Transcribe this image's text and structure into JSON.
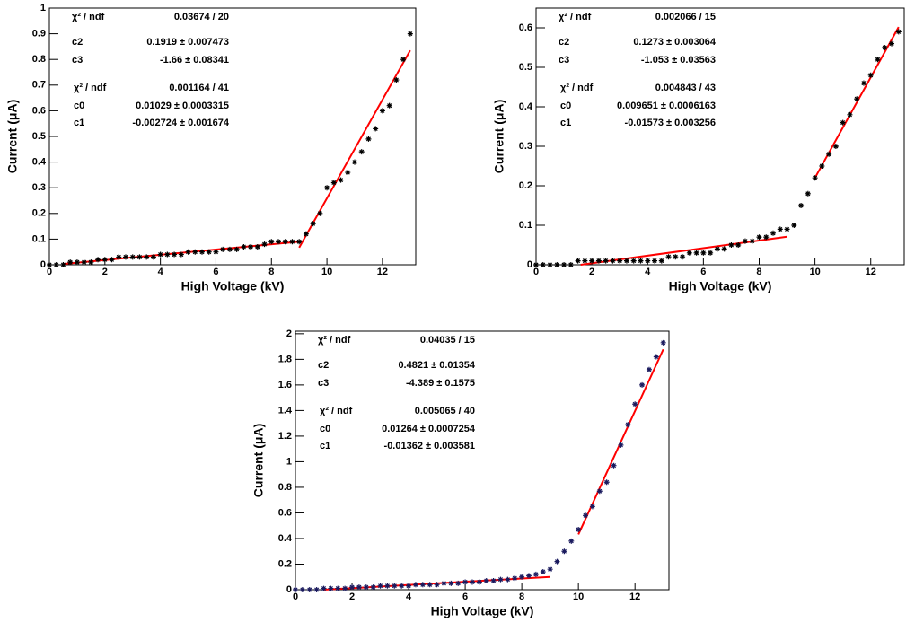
{
  "chart_data": [
    {
      "type": "scatter",
      "x_label": "High Voltage (kV)",
      "y_label": "Current (μA)",
      "xlim": [
        0,
        13.2
      ],
      "ylim": [
        0,
        1
      ],
      "xticks": [
        0,
        2,
        4,
        6,
        8,
        10,
        12
      ],
      "yticks": [
        0,
        0.1,
        0.2,
        0.3,
        0.4,
        0.5,
        0.6,
        0.7,
        0.8,
        0.9,
        1
      ],
      "x": [
        0,
        0.25,
        0.5,
        0.75,
        1,
        1.25,
        1.5,
        1.75,
        2,
        2.25,
        2.5,
        2.75,
        3,
        3.25,
        3.5,
        3.75,
        4,
        4.25,
        4.5,
        4.75,
        5,
        5.25,
        5.5,
        5.75,
        6,
        6.25,
        6.5,
        6.75,
        7,
        7.25,
        7.5,
        7.75,
        8,
        8.25,
        8.5,
        8.75,
        9,
        9.25,
        9.5,
        9.75,
        10,
        10.25,
        10.5,
        10.75,
        11,
        11.25,
        11.5,
        11.75,
        12,
        12.25,
        12.5,
        12.75,
        13
      ],
      "series": [
        {
          "color": "#000000",
          "values": [
            0,
            0,
            0,
            0.01,
            0.01,
            0.01,
            0.01,
            0.02,
            0.02,
            0.02,
            0.03,
            0.03,
            0.03,
            0.03,
            0.03,
            0.03,
            0.04,
            0.04,
            0.04,
            0.04,
            0.05,
            0.05,
            0.05,
            0.05,
            0.05,
            0.06,
            0.06,
            0.06,
            0.07,
            0.07,
            0.07,
            0.08,
            0.09,
            0.09,
            0.09,
            0.09,
            0.09,
            0.12,
            0.16,
            0.2,
            0.3,
            0.32,
            0.33,
            0.36,
            0.4,
            0.44,
            0.49,
            0.53,
            0.6,
            0.62,
            0.72,
            0.8,
            0.9
          ]
        }
      ],
      "fits": [
        {
          "color": "#ff0000",
          "x": [
            9,
            13
          ],
          "values": [
            0.067,
            0.835
          ]
        },
        {
          "color": "#ff0000",
          "x": [
            0.5,
            9
          ],
          "values": [
            0.003,
            0.09
          ]
        }
      ],
      "stats": [
        [
          {
            "label": "χ² / ndf",
            "value": "0.03674 / 20"
          },
          {
            "label": "c2",
            "value": "0.1919 ± 0.007473"
          },
          {
            "label": "c3",
            "value": "-1.66 ± 0.08341"
          }
        ],
        [
          {
            "label": "χ² / ndf",
            "value": "0.001164 / 41"
          },
          {
            "label": "c0",
            "value": "0.01029 ± 0.0003315"
          },
          {
            "label": "c1",
            "value": "-0.002724 ± 0.001674"
          }
        ]
      ]
    },
    {
      "type": "scatter",
      "x_label": "High Voltage (kV)",
      "y_label": "Current (μA)",
      "xlim": [
        0,
        13.2
      ],
      "ylim": [
        0,
        0.65
      ],
      "xticks": [
        0,
        2,
        4,
        6,
        8,
        10,
        12
      ],
      "yticks": [
        0,
        0.1,
        0.2,
        0.3,
        0.4,
        0.5,
        0.6
      ],
      "x": [
        0,
        0.25,
        0.5,
        0.75,
        1,
        1.25,
        1.5,
        1.75,
        2,
        2.25,
        2.5,
        2.75,
        3,
        3.25,
        3.5,
        3.75,
        4,
        4.25,
        4.5,
        4.75,
        5,
        5.25,
        5.5,
        5.75,
        6,
        6.25,
        6.5,
        6.75,
        7,
        7.25,
        7.5,
        7.75,
        8,
        8.25,
        8.5,
        8.75,
        9,
        9.25,
        9.5,
        9.75,
        10,
        10.25,
        10.5,
        10.75,
        11,
        11.25,
        11.5,
        11.75,
        12,
        12.25,
        12.5,
        12.75,
        13
      ],
      "series": [
        {
          "color": "#000000",
          "values": [
            0,
            0,
            0,
            0,
            0,
            0,
            0.01,
            0.01,
            0.01,
            0.01,
            0.01,
            0.01,
            0.01,
            0.01,
            0.01,
            0.01,
            0.01,
            0.01,
            0.01,
            0.02,
            0.02,
            0.02,
            0.03,
            0.03,
            0.03,
            0.03,
            0.04,
            0.04,
            0.05,
            0.05,
            0.06,
            0.06,
            0.07,
            0.07,
            0.08,
            0.09,
            0.09,
            0.1,
            0.15,
            0.18,
            0.22,
            0.25,
            0.28,
            0.3,
            0.36,
            0.38,
            0.42,
            0.46,
            0.48,
            0.52,
            0.55,
            0.56,
            0.59
          ]
        }
      ],
      "fits": [
        {
          "color": "#ff0000",
          "x": [
            10,
            13
          ],
          "values": [
            0.22,
            0.602
          ]
        },
        {
          "color": "#ff0000",
          "x": [
            1.6,
            9
          ],
          "values": [
            0,
            0.071
          ]
        }
      ],
      "stats": [
        [
          {
            "label": "χ² / ndf",
            "value": "0.002066 / 15"
          },
          {
            "label": "c2",
            "value": "0.1273 ± 0.003064"
          },
          {
            "label": "c3",
            "value": "-1.053 ± 0.03563"
          }
        ],
        [
          {
            "label": "χ² / ndf",
            "value": "0.004843 / 43"
          },
          {
            "label": "c0",
            "value": "0.009651 ± 0.0006163"
          },
          {
            "label": "c1",
            "value": "-0.01573 ± 0.003256"
          }
        ]
      ]
    },
    {
      "type": "scatter",
      "x_label": "High Voltage (kV)",
      "y_label": "Current (μA)",
      "xlim": [
        0,
        13.2
      ],
      "ylim": [
        0,
        2.02
      ],
      "xticks": [
        0,
        2,
        4,
        6,
        8,
        10,
        12
      ],
      "yticks": [
        0,
        0.2,
        0.4,
        0.6,
        0.8,
        1,
        1.2,
        1.4,
        1.6,
        1.8,
        2
      ],
      "x": [
        0,
        0.25,
        0.5,
        0.75,
        1,
        1.25,
        1.5,
        1.75,
        2,
        2.25,
        2.5,
        2.75,
        3,
        3.25,
        3.5,
        3.75,
        4,
        4.25,
        4.5,
        4.75,
        5,
        5.25,
        5.5,
        5.75,
        6,
        6.25,
        6.5,
        6.75,
        7,
        7.25,
        7.5,
        7.75,
        8,
        8.25,
        8.5,
        8.75,
        9,
        9.25,
        9.5,
        9.75,
        10,
        10.25,
        10.5,
        10.75,
        11,
        11.25,
        11.5,
        11.75,
        12,
        12.25,
        12.5,
        12.75,
        13
      ],
      "series": [
        {
          "color": "#1a1a5e",
          "values": [
            0,
            0,
            0,
            0,
            0.01,
            0.01,
            0.01,
            0.01,
            0.02,
            0.02,
            0.02,
            0.02,
            0.03,
            0.03,
            0.03,
            0.03,
            0.03,
            0.04,
            0.04,
            0.04,
            0.04,
            0.05,
            0.05,
            0.05,
            0.06,
            0.06,
            0.06,
            0.07,
            0.07,
            0.08,
            0.08,
            0.09,
            0.1,
            0.11,
            0.12,
            0.14,
            0.16,
            0.22,
            0.3,
            0.38,
            0.47,
            0.58,
            0.65,
            0.77,
            0.84,
            0.97,
            1.13,
            1.29,
            1.45,
            1.6,
            1.72,
            1.82,
            1.93
          ]
        }
      ],
      "fits": [
        {
          "color": "#ff0000",
          "x": [
            10,
            13
          ],
          "values": [
            0.432,
            1.878
          ]
        },
        {
          "color": "#ff0000",
          "x": [
            1,
            9
          ],
          "values": [
            0,
            0.1
          ]
        }
      ],
      "stats": [
        [
          {
            "label": "χ² / ndf",
            "value": "0.04035 / 15"
          },
          {
            "label": "c2",
            "value": "0.4821 ± 0.01354"
          },
          {
            "label": "c3",
            "value": "-4.389 ± 0.1575"
          }
        ],
        [
          {
            "label": "χ² / ndf",
            "value": "0.005065 / 40"
          },
          {
            "label": "c0",
            "value": "0.01264 ± 0.0007254"
          },
          {
            "label": "c1",
            "value": "-0.01362 ± 0.003581"
          }
        ]
      ]
    }
  ]
}
